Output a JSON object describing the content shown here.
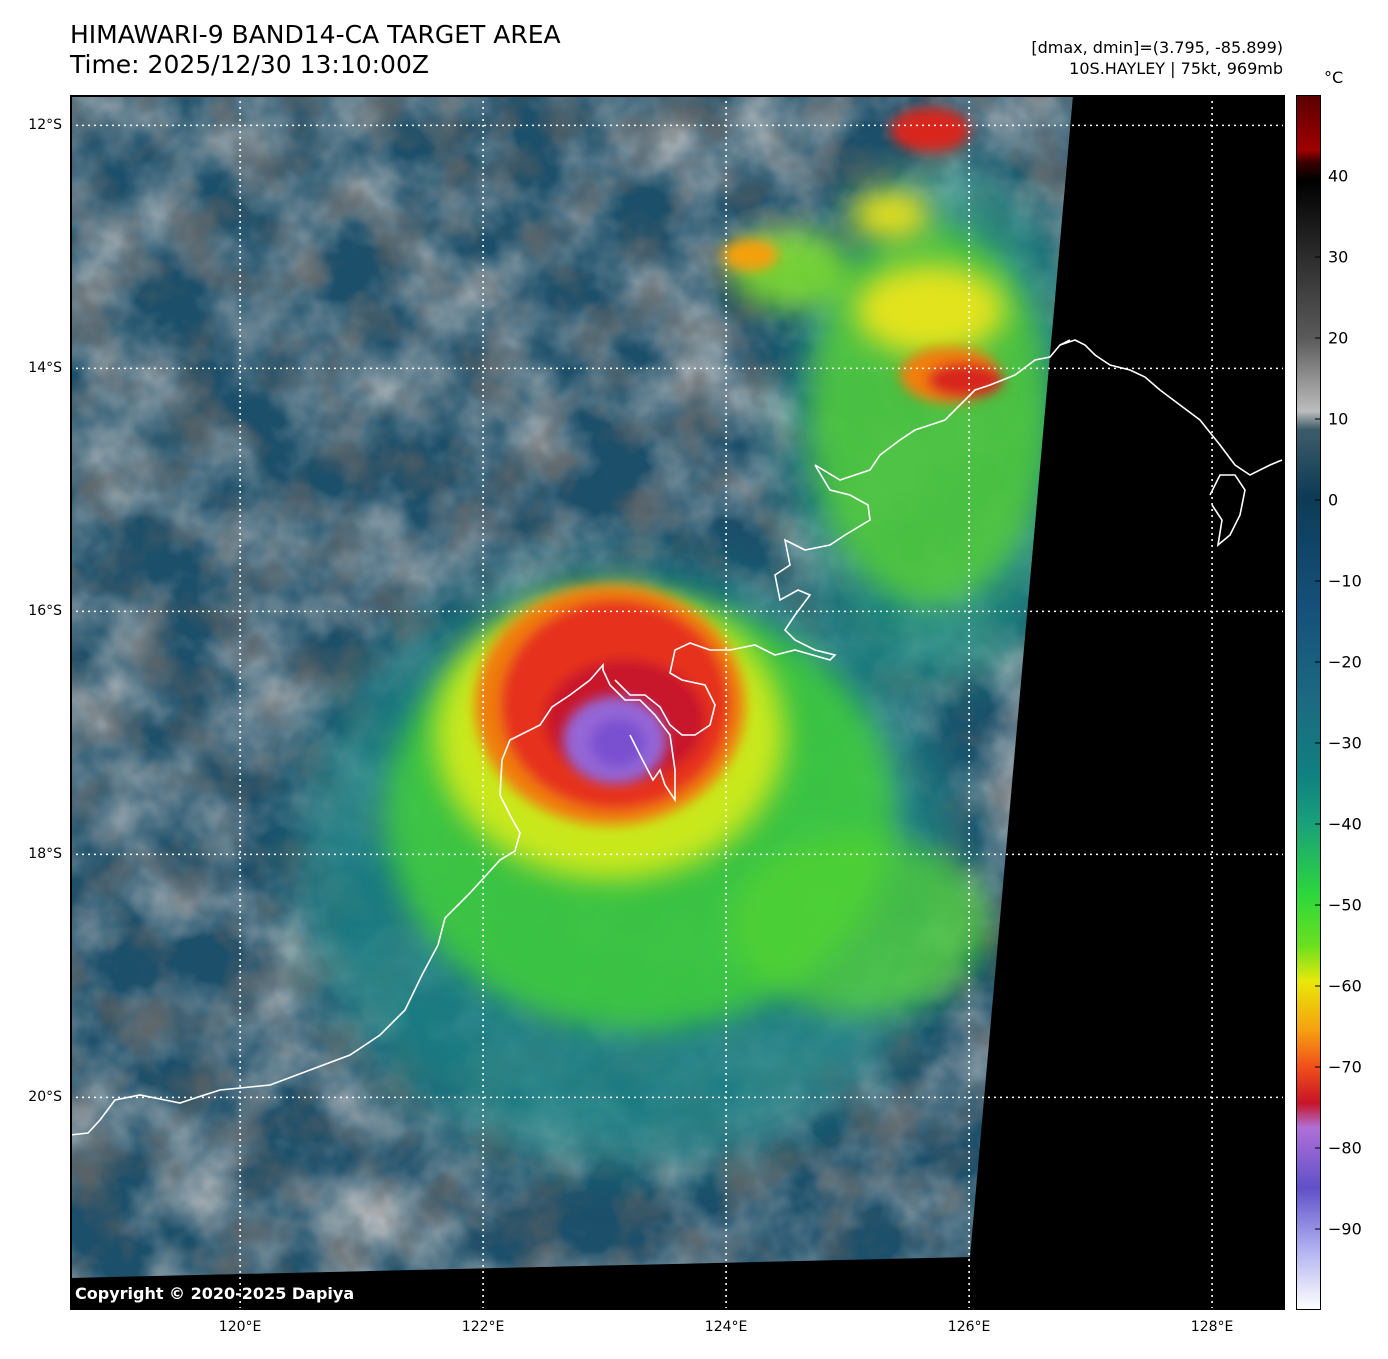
{
  "header": {
    "title_line1": "HIMAWARI-9 BAND14-CA TARGET AREA",
    "title_line2": "Time: 2025/12/30 13:10:00Z",
    "range_text": "[dmax, dmin]=(3.795, -85.899)",
    "storm_text": "10S.HAYLEY | 75kt, 969mb"
  },
  "colorbar": {
    "unit": "°C",
    "ticks": [
      "40",
      "30",
      "20",
      "10",
      "0",
      "−10",
      "−20",
      "−30",
      "−40",
      "−50",
      "−60",
      "−70",
      "−80",
      "−90"
    ],
    "tick_values": [
      40,
      30,
      20,
      10,
      0,
      -10,
      -20,
      -30,
      -40,
      -50,
      -60,
      -70,
      -80,
      -90
    ],
    "range": [
      -100,
      50
    ]
  },
  "map": {
    "lat_labels": [
      "12°S",
      "14°S",
      "16°S",
      "18°S",
      "20°S"
    ],
    "lat_values": [
      -12,
      -14,
      -16,
      -18,
      -20
    ],
    "lon_labels": [
      "120°E",
      "122°E",
      "124°E",
      "126°E",
      "128°E"
    ],
    "lon_values": [
      120,
      122,
      124,
      126,
      128
    ],
    "lon_range": [
      118.6,
      128.6
    ],
    "lat_range": [
      -21.75,
      -11.75
    ],
    "copyright": "Copyright © 2020-2025 Dapiya"
  },
  "colors": {
    "no_data": "#000000",
    "coastline": "#ffffff",
    "grid": "#ffffff"
  }
}
